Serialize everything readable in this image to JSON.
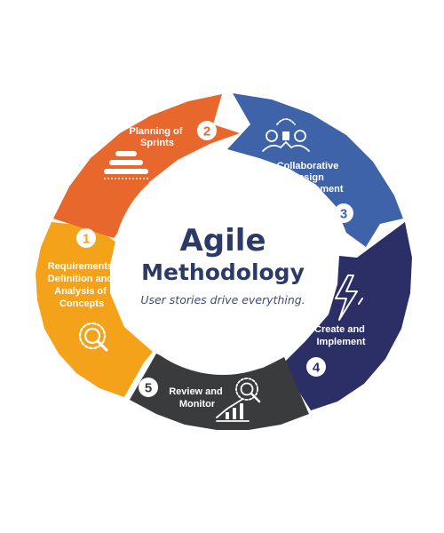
{
  "center": {
    "title": "Agile",
    "subtitle_title": "Methodology",
    "tagline": "User stories drive everything."
  },
  "steps": [
    {
      "number": "1",
      "lines": [
        "Requirements",
        "Definition and",
        "Analysis of",
        "Concepts"
      ],
      "color": "#f5a21b",
      "icon": "magnifier-icon"
    },
    {
      "number": "2",
      "lines": [
        "Planning of",
        "Sprints"
      ],
      "color": "#e8672c",
      "icon": "stacked-layers-icon"
    },
    {
      "number": "3",
      "lines": [
        "Collaborative",
        "Design",
        "Development"
      ],
      "color": "#3f63a8",
      "icon": "team-handshake-icon"
    },
    {
      "number": "4",
      "lines": [
        "Create and",
        "Implement"
      ],
      "color": "#2c2f66",
      "icon": "lightning-bolt-icon"
    },
    {
      "number": "5",
      "lines": [
        "Review and",
        "Monitor"
      ],
      "color": "#3a3b3d",
      "icon": "analytics-growth-icon"
    }
  ]
}
